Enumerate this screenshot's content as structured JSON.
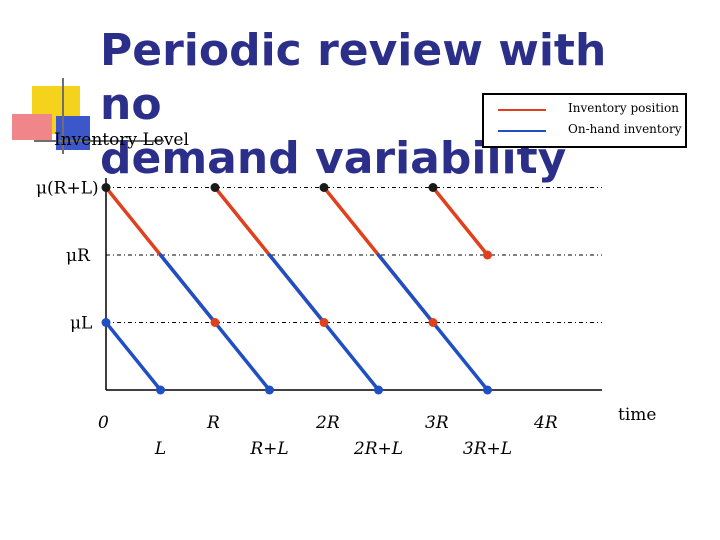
{
  "title": {
    "line1": "Periodic review with no",
    "line2": "demand variability"
  },
  "legend": [
    {
      "label": "Inventory position",
      "color": "#e0401c"
    },
    {
      "label": "On-hand inventory",
      "color": "#1f4fc4"
    }
  ],
  "chart_data": {
    "type": "line",
    "ylabel": "Inventory Level",
    "xlabel": "time",
    "x_ticks_top": [
      "0",
      "R",
      "2R",
      "3R",
      "4R"
    ],
    "x_ticks_bottom": [
      "L",
      "R+L",
      "2R+L",
      "3R+L"
    ],
    "y_ticks": [
      "μ(R+L)",
      "μR",
      "μL"
    ],
    "settings": {
      "R": 2,
      "L": 1,
      "mu": 1,
      "xlim": [
        0,
        8.7
      ],
      "ylim": [
        0,
        3
      ]
    },
    "series": [
      {
        "name": "Inventory position",
        "color": "#e0401c",
        "segments": [
          [
            [
              0,
              3
            ],
            [
              2,
              1
            ]
          ],
          [
            [
              2,
              3
            ],
            [
              4,
              1
            ]
          ],
          [
            [
              4,
              3
            ],
            [
              6,
              1
            ]
          ],
          [
            [
              6,
              3
            ],
            [
              7,
              2
            ]
          ]
        ]
      },
      {
        "name": "On-hand inventory",
        "color": "#1f4fc4",
        "segments": [
          [
            [
              0,
              1
            ],
            [
              1,
              0
            ]
          ],
          [
            [
              1,
              2
            ],
            [
              3,
              0
            ]
          ],
          [
            [
              3,
              2
            ],
            [
              5,
              0
            ]
          ],
          [
            [
              5,
              2
            ],
            [
              7,
              0
            ]
          ]
        ]
      }
    ],
    "markers": [
      {
        "x": 0,
        "y": 3,
        "color": "#1a1a1a"
      },
      {
        "x": 2,
        "y": 3,
        "color": "#1a1a1a"
      },
      {
        "x": 4,
        "y": 3,
        "color": "#1a1a1a"
      },
      {
        "x": 6,
        "y": 3,
        "color": "#1a1a1a"
      },
      {
        "x": 2,
        "y": 1,
        "color": "#e0401c"
      },
      {
        "x": 4,
        "y": 1,
        "color": "#e0401c"
      },
      {
        "x": 6,
        "y": 1,
        "color": "#e0401c"
      },
      {
        "x": 7,
        "y": 2,
        "color": "#e0401c"
      },
      {
        "x": 1,
        "y": 0,
        "color": "#1f4fc4"
      },
      {
        "x": 3,
        "y": 0,
        "color": "#1f4fc4"
      },
      {
        "x": 5,
        "y": 0,
        "color": "#1f4fc4"
      },
      {
        "x": 7,
        "y": 0,
        "color": "#1f4fc4"
      },
      {
        "x": 0,
        "y": 1,
        "color": "#1f4fc4"
      }
    ],
    "gridlines": {
      "horizontal": [
        3,
        2,
        1
      ],
      "style": "dash-dot"
    },
    "legend_position": "top-right"
  }
}
